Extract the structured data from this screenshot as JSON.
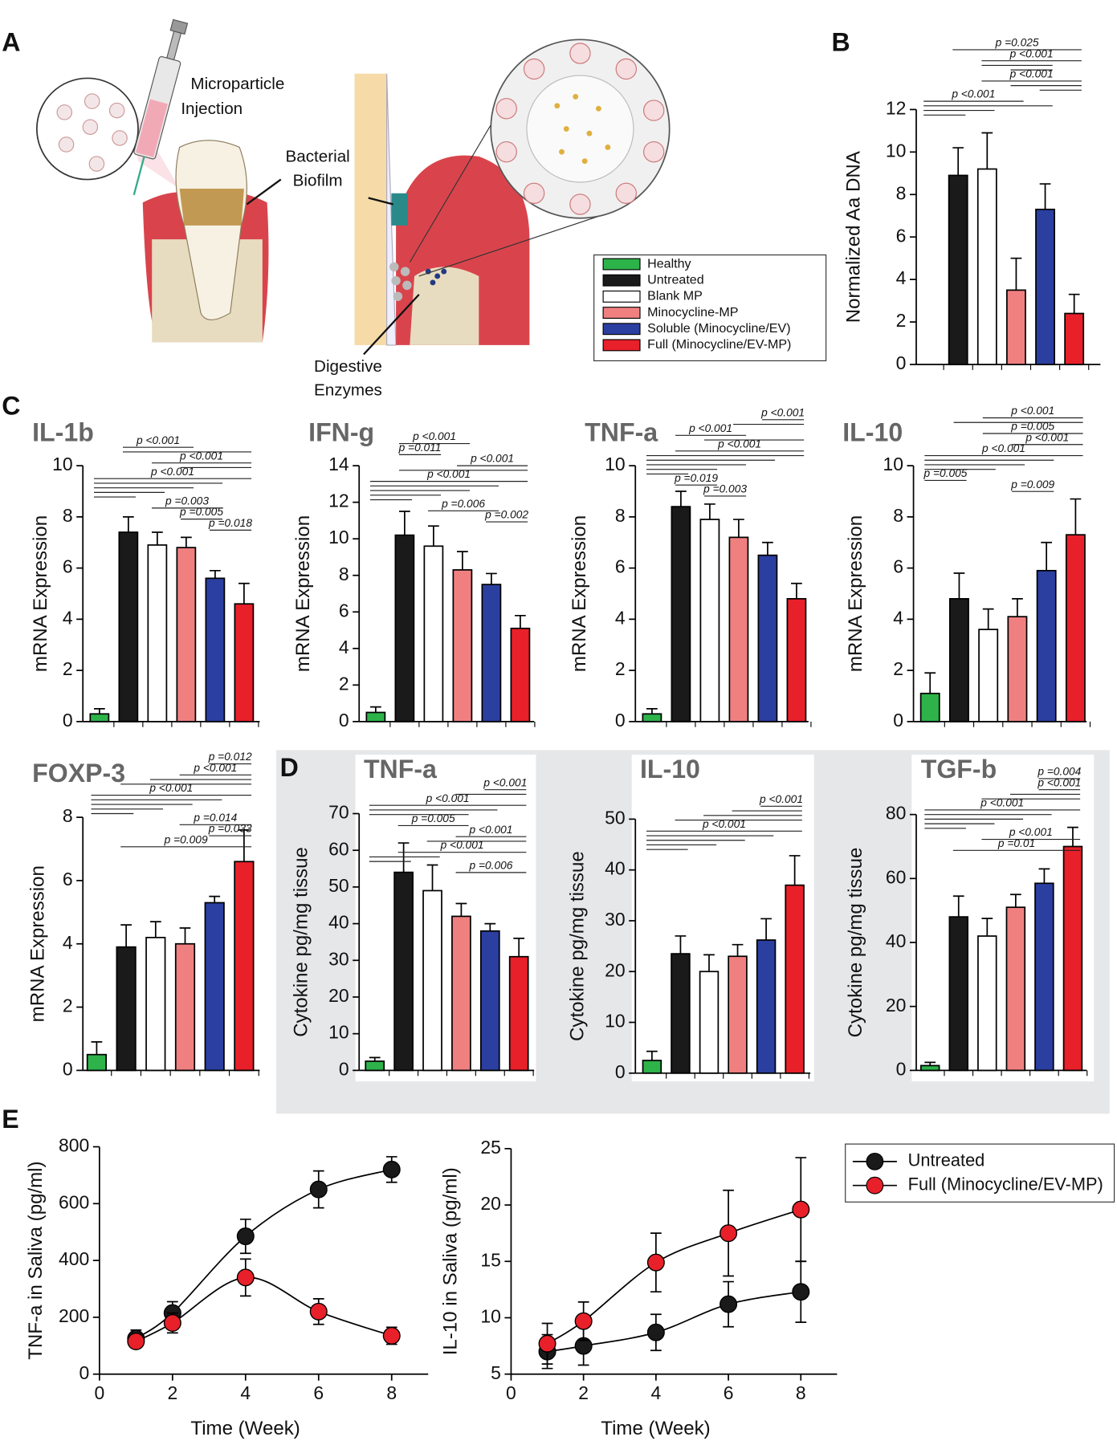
{
  "panel_labels": [
    "A",
    "B",
    "C",
    "D",
    "E"
  ],
  "illustration": {
    "injection": [
      "Microparticle",
      "Injection"
    ],
    "biofilm": [
      "Bacterial",
      "Biofilm"
    ],
    "enzymes": [
      "Digestive",
      "Enzymes"
    ]
  },
  "legend": {
    "items": [
      {
        "name": "Healthy",
        "color": "#2db34a"
      },
      {
        "name": "Untreated",
        "color": "#1a1a1a"
      },
      {
        "name": "Blank MP",
        "color": "#ffffff"
      },
      {
        "name": "Minocycline-MP",
        "color": "#f08080"
      },
      {
        "name": "Soluble (Minocycline/EV)",
        "color": "#2b3fa0"
      },
      {
        "name": "Full (Minocycline/EV-MP)",
        "color": "#e8202a"
      }
    ]
  },
  "chart_data": [
    {
      "type": "bar",
      "ylabel": "Normalized Aa DNA",
      "values": [
        null,
        8.9,
        9.2,
        3.5,
        7.3,
        2.4
      ],
      "errors": [
        null,
        1.3,
        1.7,
        1.5,
        1.2,
        0.9
      ],
      "ylim": [
        0,
        12
      ],
      "yticks": [
        0,
        2,
        4,
        6,
        8,
        10,
        12
      ],
      "annotations": [
        "p =0.025",
        "p <0.001",
        "p <0.001",
        "p <0.001"
      ]
    },
    {
      "type": "bar",
      "title": "IL-1b",
      "ylabel": "mRNA Expression",
      "values": [
        0.3,
        7.4,
        6.9,
        6.8,
        5.6,
        4.6
      ],
      "errors": [
        0.2,
        0.6,
        0.5,
        0.4,
        0.3,
        0.8
      ],
      "ylim": [
        0,
        10
      ],
      "yticks": [
        0,
        2,
        4,
        6,
        8,
        10
      ],
      "annotations": [
        "p <0.001",
        "p <0.001",
        "p <0.001",
        "p =0.003",
        "p =0.005",
        "p =0.018"
      ]
    },
    {
      "type": "bar",
      "title": "IFN-g",
      "ylabel": "mRNA Expression",
      "values": [
        0.5,
        10.2,
        9.6,
        8.3,
        7.5,
        5.1
      ],
      "errors": [
        0.3,
        1.3,
        1.1,
        1.0,
        0.6,
        0.7
      ],
      "ylim": [
        0,
        14
      ],
      "yticks": [
        0,
        2,
        4,
        6,
        8,
        10,
        12,
        14
      ],
      "annotations": [
        "p <0.001",
        "p =0.011",
        "p <0.001",
        "p <0.001",
        "p =0.006",
        "p =0.002"
      ]
    },
    {
      "type": "bar",
      "title": "TNF-a",
      "ylabel": "mRNA Expression",
      "values": [
        0.3,
        8.4,
        7.9,
        7.2,
        6.5,
        4.8
      ],
      "errors": [
        0.2,
        0.6,
        0.6,
        0.7,
        0.5,
        0.6
      ],
      "ylim": [
        0,
        10
      ],
      "yticks": [
        0,
        2,
        4,
        6,
        8,
        10
      ],
      "annotations": [
        "p <0.001",
        "p <0.001",
        "p <0.001",
        "p =0.019",
        "p =0.003"
      ]
    },
    {
      "type": "bar",
      "title": "IL-10",
      "ylabel": "mRNA Expression",
      "values": [
        1.1,
        4.8,
        3.6,
        4.1,
        5.9,
        7.3
      ],
      "errors": [
        0.8,
        1.0,
        0.8,
        0.7,
        1.1,
        1.4
      ],
      "ylim": [
        0,
        10
      ],
      "yticks": [
        0,
        2,
        4,
        6,
        8,
        10
      ],
      "annotations": [
        "p <0.001",
        "p =0.005",
        "p <0.001",
        "p <0.001",
        "p =0.005",
        "p =0.009"
      ]
    },
    {
      "type": "bar",
      "title": "FOXP-3",
      "ylabel": "mRNA Expression",
      "values": [
        0.5,
        3.9,
        4.2,
        4.0,
        5.3,
        6.6
      ],
      "errors": [
        0.4,
        0.7,
        0.5,
        0.5,
        0.2,
        1.0
      ],
      "ylim": [
        0,
        8
      ],
      "yticks": [
        0,
        2,
        4,
        6,
        8
      ],
      "annotations": [
        "p =0.012",
        "p <0.001",
        "p <0.001",
        "p =0.014",
        "p =0.033",
        "p =0.009"
      ]
    },
    {
      "type": "bar",
      "title": "TNF-a",
      "ylabel": "Cytokine pg/mg tissue",
      "values": [
        2.5,
        54,
        49,
        42,
        38,
        31
      ],
      "errors": [
        1.0,
        8,
        7,
        3.5,
        2,
        5
      ],
      "ylim": [
        0,
        70
      ],
      "yticks": [
        0,
        10,
        20,
        30,
        40,
        50,
        60,
        70
      ],
      "annotations": [
        "p <0.001",
        "p <0.001",
        "p =0.005",
        "p <0.001",
        "p <0.001",
        "p =0.006"
      ]
    },
    {
      "type": "bar",
      "title": "IL-10",
      "ylabel": "Cytokine pg/mg tissue",
      "values": [
        2.5,
        23.5,
        20,
        23,
        26.2,
        37
      ],
      "errors": [
        1.8,
        3.5,
        3.3,
        2.3,
        4.2,
        5.8
      ],
      "ylim": [
        0,
        50
      ],
      "yticks": [
        0,
        10,
        20,
        30,
        40,
        50
      ],
      "annotations": [
        "p <0.001",
        "p <0.001"
      ]
    },
    {
      "type": "bar",
      "title": "TGF-b",
      "ylabel": "Cytokine pg/mg tissue",
      "values": [
        1.5,
        48,
        42,
        51,
        58.5,
        70
      ],
      "errors": [
        1,
        6.5,
        5.5,
        4,
        4.5,
        6
      ],
      "ylim": [
        0,
        80
      ],
      "yticks": [
        0,
        20,
        40,
        60,
        80
      ],
      "annotations": [
        "p =0.004",
        "p <0.001",
        "p <0.001",
        "p <0.001",
        "p =0.01"
      ]
    },
    {
      "type": "line",
      "xlabel": "Time (Week)",
      "ylabel": "TNF-a in Saliva (pg/ml)",
      "x": [
        1,
        2,
        4,
        6,
        8
      ],
      "xlim": [
        0,
        9
      ],
      "xticks": [
        0,
        2,
        4,
        6,
        8
      ],
      "ylim": [
        0,
        800
      ],
      "yticks": [
        0,
        200,
        400,
        600,
        800
      ],
      "series": [
        {
          "color": "#1a1a1a",
          "values": [
            125,
            215,
            485,
            650,
            720
          ],
          "errors": [
            30,
            40,
            60,
            65,
            45
          ]
        },
        {
          "color": "#e8202a",
          "values": [
            115,
            180,
            340,
            220,
            135
          ],
          "errors": [
            20,
            35,
            65,
            45,
            30
          ]
        }
      ]
    },
    {
      "type": "line",
      "xlabel": "Time (Week)",
      "ylabel": "IL-10 in Saliva (pg/ml)",
      "x": [
        1,
        2,
        4,
        6,
        8
      ],
      "xlim": [
        0,
        9
      ],
      "xticks": [
        0,
        2,
        4,
        6,
        8
      ],
      "ylim": [
        5,
        25
      ],
      "yticks": [
        5,
        10,
        15,
        20,
        25
      ],
      "legend": "right",
      "series": [
        {
          "name": "Untreated",
          "color": "#1a1a1a",
          "values": [
            7.0,
            7.5,
            8.7,
            11.2,
            12.3
          ],
          "errors": [
            1.5,
            1.7,
            1.6,
            2.0,
            2.7
          ]
        },
        {
          "name": "Full (Minocycline/EV-MP)",
          "color": "#e8202a",
          "values": [
            7.7,
            9.7,
            14.9,
            17.5,
            19.6
          ],
          "errors": [
            1.8,
            1.7,
            2.6,
            3.8,
            4.6
          ]
        }
      ]
    }
  ]
}
